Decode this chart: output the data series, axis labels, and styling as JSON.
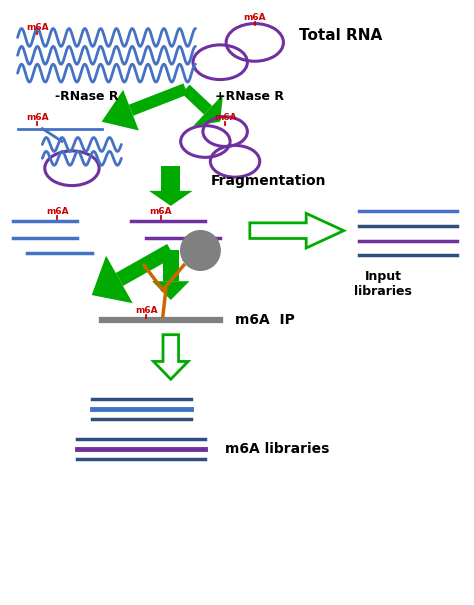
{
  "bg_color": "#ffffff",
  "blue_color": "#4472C4",
  "purple_color": "#7030A0",
  "green_color": "#00AA00",
  "red_color": "#CC0000",
  "gray_color": "#808080",
  "orange_color": "#CC6600",
  "dark_navy": "#2F4F7F",
  "text_color": "#000000",
  "title": "Total RNA",
  "label_fragmentation": "Fragmentation",
  "label_input": "Input\nlibraries",
  "label_m6a_ip": "m6A  IP",
  "label_m6a_lib": "m6A libraries",
  "label_rnase_minus": "-RNase R",
  "label_rnase_plus": "+RNase R"
}
